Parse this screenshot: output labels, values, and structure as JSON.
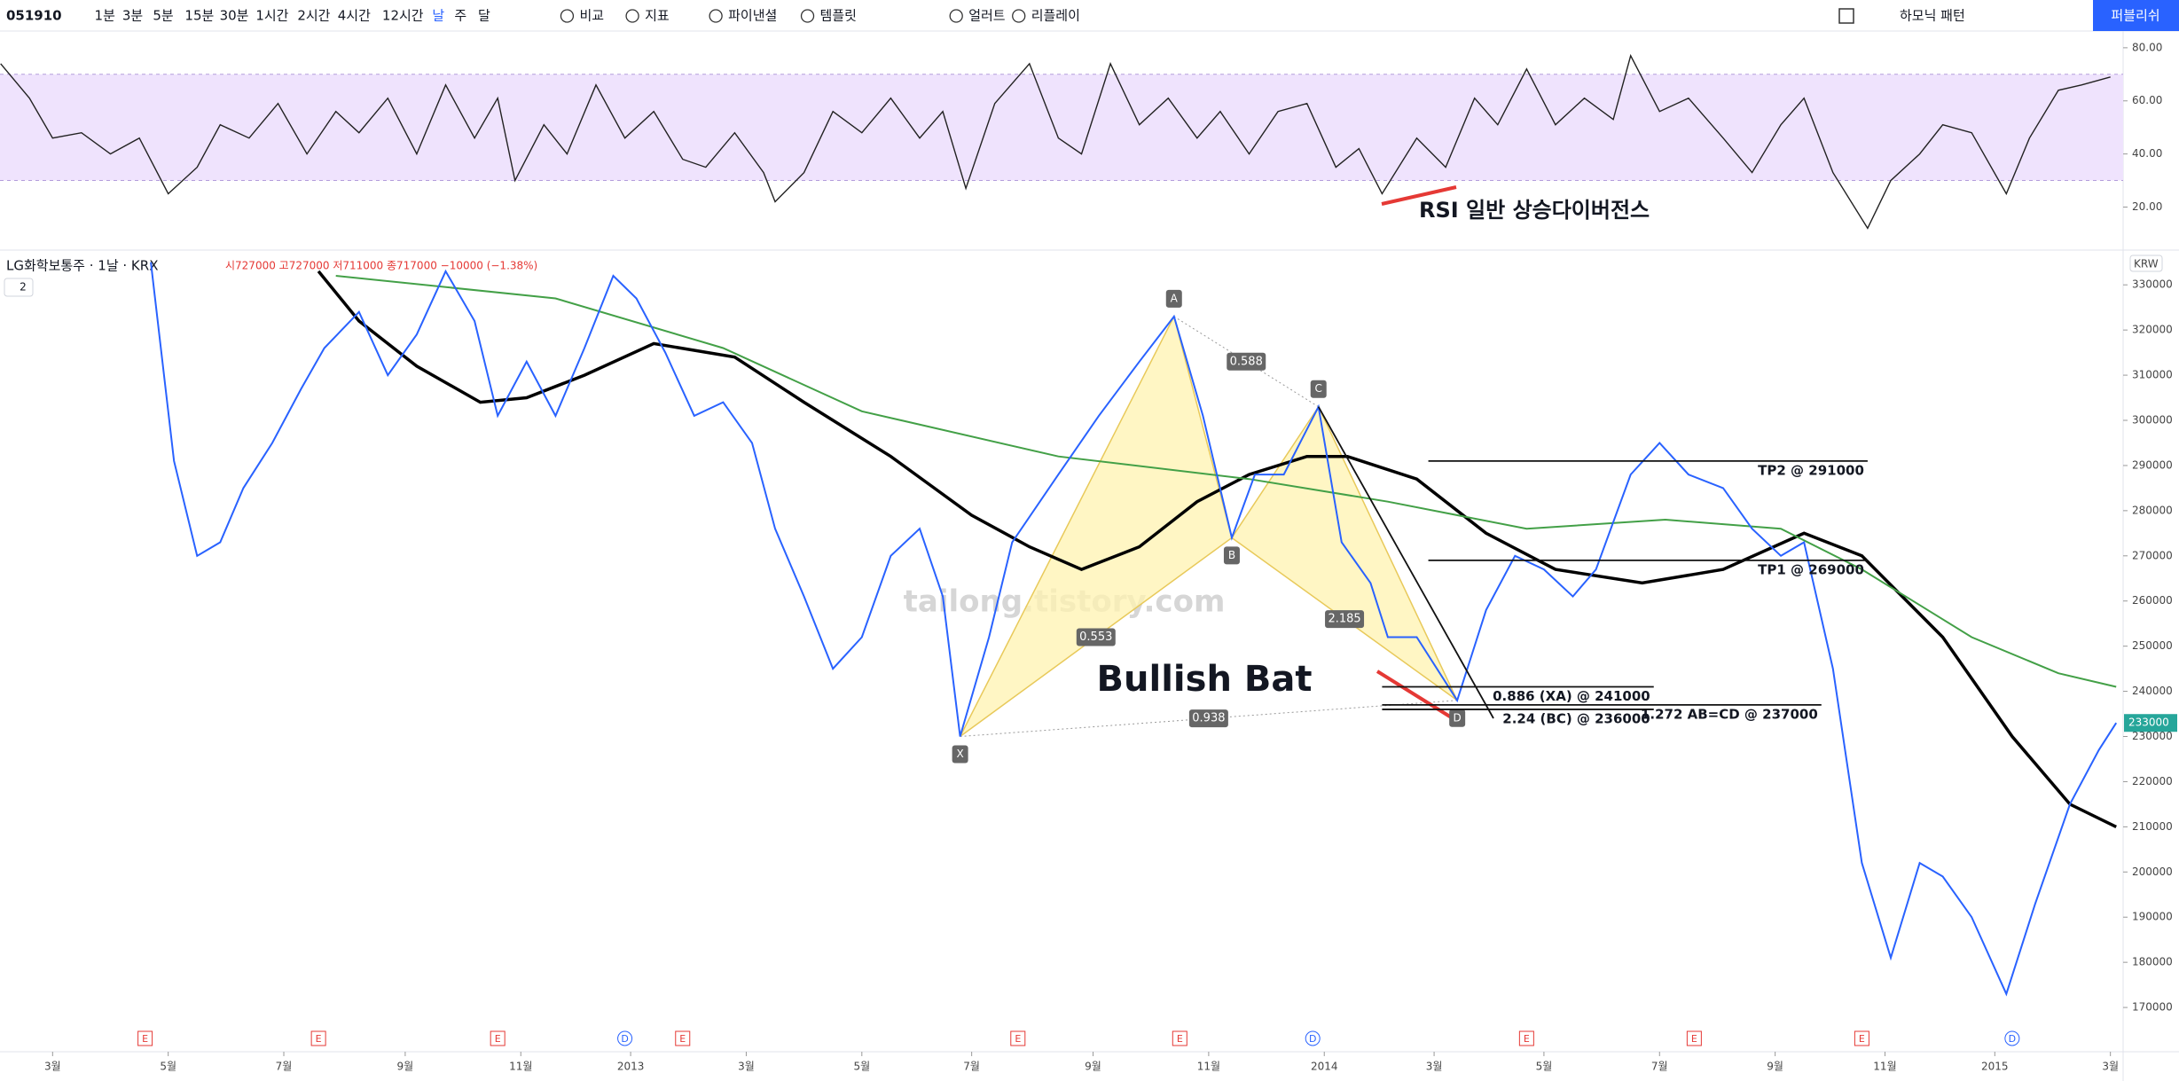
{
  "toolbar": {
    "symbol": "051910",
    "intervals": [
      "1분",
      "3분",
      "5분",
      "15분",
      "30분",
      "1시간",
      "2시간",
      "4시간",
      "12시간",
      "날",
      "주",
      "달"
    ],
    "active_interval": 9,
    "buttons": [
      "비교",
      "지표",
      "파이낸셜",
      "템플릿",
      "얼러트",
      "리플레이"
    ],
    "pattern_menu": "하모닉 패턴",
    "publish": "퍼블리쉬"
  },
  "legend": {
    "symbol_line": "LG화학보통주 · 1날 · KRX",
    "ohlc": "시727000 고727000 저711000 종717000 −10000 (−1.38%)",
    "studies_count": 2
  },
  "chart_data": [
    {
      "type": "line",
      "annotation": "RSI 일반 상승다이버전스",
      "xlim": [
        -0.91,
        35.82
      ],
      "ylim": [
        3.8,
        86.3
      ],
      "yticks": [
        {
          "value": 20,
          "label": "20.00"
        },
        {
          "value": 40,
          "label": "40.00"
        },
        {
          "value": 60,
          "label": "60.00"
        },
        {
          "value": 80,
          "label": "80.00"
        }
      ],
      "band": [
        30,
        70
      ],
      "band_color": "#efe3fd",
      "x": [
        -0.9,
        -0.4,
        0.0,
        0.5,
        1.0,
        1.5,
        2.0,
        2.5,
        2.9,
        3.4,
        3.9,
        4.4,
        4.9,
        5.3,
        5.8,
        6.3,
        6.8,
        7.3,
        7.7,
        8.0,
        8.5,
        8.9,
        9.4,
        9.9,
        10.4,
        10.9,
        11.3,
        11.8,
        12.3,
        12.5,
        13.0,
        13.5,
        14.0,
        14.5,
        15.0,
        15.4,
        15.8,
        16.3,
        16.9,
        17.4,
        17.8,
        18.3,
        18.8,
        19.3,
        19.8,
        20.2,
        20.7,
        21.2,
        21.7,
        22.2,
        22.6,
        23.0,
        23.6,
        24.1,
        24.6,
        25.0,
        25.5,
        26.0,
        26.5,
        27.0,
        27.3,
        27.8,
        28.3,
        28.9,
        29.4,
        29.9,
        30.3,
        30.8,
        31.4,
        31.8,
        32.3,
        32.7,
        33.2,
        33.8,
        34.2,
        34.7,
        35.1,
        35.6
      ],
      "series": [
        {
          "color": "#222222",
          "values": [
            74,
            61,
            46,
            48,
            40,
            46,
            25,
            35,
            51,
            46,
            59,
            40,
            56,
            48,
            61,
            40,
            66,
            46,
            61,
            30,
            51,
            40,
            66,
            46,
            56,
            38,
            35,
            48,
            33,
            22,
            33,
            56,
            48,
            61,
            46,
            56,
            27,
            59,
            74,
            46,
            40,
            74,
            51,
            61,
            46,
            56,
            40,
            56,
            59,
            35,
            42,
            25,
            46,
            35,
            61,
            51,
            72,
            51,
            61,
            53,
            77,
            56,
            61,
            46,
            33,
            51,
            61,
            33,
            12,
            30,
            40,
            51,
            48,
            25,
            46,
            64,
            66,
            69
          ]
        }
      ]
    },
    {
      "type": "line",
      "currency": "KRW",
      "watermark": "tailong.tistory.com",
      "xlim": [
        -0.91,
        35.82
      ],
      "ylim": [
        160200,
        337700
      ],
      "yticks": [
        170000,
        180000,
        190000,
        200000,
        210000,
        220000,
        230000,
        240000,
        250000,
        260000,
        270000,
        280000,
        290000,
        300000,
        310000,
        320000,
        330000
      ],
      "xticks": [
        {
          "value": 0.0,
          "label": "3월"
        },
        {
          "value": 2.0,
          "label": "5월"
        },
        {
          "value": 4.0,
          "label": "7월"
        },
        {
          "value": 6.1,
          "label": "9월"
        },
        {
          "value": 8.1,
          "label": "11월"
        },
        {
          "value": 10.0,
          "label": "2013"
        },
        {
          "value": 12.0,
          "label": "3월"
        },
        {
          "value": 14.0,
          "label": "5월"
        },
        {
          "value": 15.9,
          "label": "7월"
        },
        {
          "value": 18.0,
          "label": "9월"
        },
        {
          "value": 20.0,
          "label": "11월"
        },
        {
          "value": 22.0,
          "label": "2014"
        },
        {
          "value": 23.9,
          "label": "3월"
        },
        {
          "value": 25.8,
          "label": "5월"
        },
        {
          "value": 27.8,
          "label": "7월"
        },
        {
          "value": 29.8,
          "label": "9월"
        },
        {
          "value": 31.7,
          "label": "11월"
        },
        {
          "value": 33.6,
          "label": "2015"
        },
        {
          "value": 35.6,
          "label": "3월"
        }
      ],
      "x": [
        1.7,
        2.1,
        2.5,
        2.9,
        3.3,
        3.8,
        4.3,
        4.7,
        5.3,
        5.8,
        6.3,
        6.8,
        7.3,
        7.7,
        8.2,
        8.7,
        9.2,
        9.7,
        10.1,
        10.6,
        11.1,
        11.6,
        12.1,
        12.5,
        13.0,
        13.5,
        14.0,
        14.5,
        15.0,
        15.4,
        15.7,
        16.2,
        16.6,
        17.4,
        18.1,
        18.8,
        19.4,
        19.9,
        20.4,
        20.8,
        21.3,
        21.9,
        22.3,
        22.8,
        23.1,
        23.6,
        24.3,
        24.8,
        25.3,
        25.8,
        26.3,
        26.7,
        27.3,
        27.8,
        28.3,
        28.9,
        29.4,
        29.9,
        30.3,
        30.8,
        31.3,
        31.8,
        32.3,
        32.7,
        33.2,
        33.8,
        34.3,
        34.9,
        35.4,
        35.7
      ],
      "series": [
        {
          "color": "#2962ff",
          "values": [
            335000,
            291000,
            270000,
            273000,
            285000,
            295000,
            307000,
            316000,
            324000,
            310000,
            319000,
            333000,
            322000,
            301000,
            313000,
            301000,
            316000,
            332000,
            327000,
            315000,
            301000,
            304000,
            295000,
            276000,
            261000,
            245000,
            252000,
            270000,
            276000,
            261000,
            230000,
            252000,
            273000,
            288000,
            301000,
            313000,
            323000,
            301000,
            274000,
            288000,
            288000,
            303000,
            273000,
            264000,
            252000,
            252000,
            238000,
            258000,
            270000,
            267000,
            261000,
            267000,
            288000,
            295000,
            288000,
            285000,
            276000,
            270000,
            273000,
            245000,
            202000,
            181000,
            202000,
            199000,
            190000,
            173000,
            193000,
            215000,
            227000,
            233000
          ]
        }
      ],
      "overlays": [
        {
          "color": "#000000",
          "x": [
            4.6,
            5.3,
            6.3,
            7.4,
            8.2,
            9.2,
            10.4,
            11.8,
            13.0,
            14.5,
            15.9,
            16.9,
            17.8,
            18.8,
            19.8,
            20.7,
            21.7,
            22.4,
            23.6,
            24.8,
            26.0,
            27.5,
            28.9,
            30.3,
            31.3,
            32.7,
            33.9,
            34.9,
            35.7
          ],
          "values": [
            333000,
            322000,
            312000,
            304000,
            305000,
            310000,
            317000,
            314000,
            304000,
            292000,
            279000,
            272000,
            267000,
            272000,
            282000,
            288000,
            292000,
            292000,
            287000,
            275000,
            267000,
            264000,
            267000,
            275000,
            270000,
            252000,
            230000,
            215000,
            210000
          ]
        },
        {
          "color": "#43a047",
          "x": [
            4.9,
            8.7,
            11.6,
            14.0,
            17.4,
            20.7,
            23.1,
            25.5,
            27.9,
            29.9,
            31.3,
            33.2,
            34.7,
            35.7
          ],
          "values": [
            332000,
            327000,
            316000,
            302000,
            292000,
            287000,
            282000,
            276000,
            278000,
            276000,
            267000,
            252000,
            244000,
            241000
          ]
        }
      ],
      "last_price": 233000,
      "pattern": {
        "name": "Bullish Bat",
        "labels": [
          "X",
          "A",
          "B",
          "C",
          "D"
        ],
        "x": [
          15.7,
          19.4,
          20.4,
          21.9,
          24.3
        ],
        "values": [
          230000,
          323000,
          274000,
          303000,
          238000
        ],
        "ratios": [
          0.553,
          0.588,
          2.185,
          0.938
        ]
      },
      "levels": [
        {
          "label": "TP2 @ 291000",
          "value": 291000,
          "x": [
            23.8,
            31.4
          ]
        },
        {
          "label": "TP1 @ 269000",
          "value": 269000,
          "x": [
            23.8,
            31.4
          ]
        },
        {
          "label": "0.886 (XA) @ 241000",
          "value": 241000,
          "x": [
            23.0,
            27.7
          ]
        },
        {
          "label": "1.272 AB=CD @ 237000",
          "value": 237000,
          "x": [
            23.0,
            30.6
          ]
        },
        {
          "label": "2.24 (BC) @ 236000",
          "value": 236000,
          "x": [
            23.0,
            27.7
          ]
        }
      ],
      "events": [
        {
          "label": "E",
          "x": [
            1.6,
            4.6,
            7.7,
            10.9,
            16.7,
            19.5,
            25.5,
            28.4,
            31.3
          ]
        },
        {
          "label": "D",
          "x": [
            9.9,
            21.8,
            33.9
          ]
        }
      ]
    }
  ]
}
